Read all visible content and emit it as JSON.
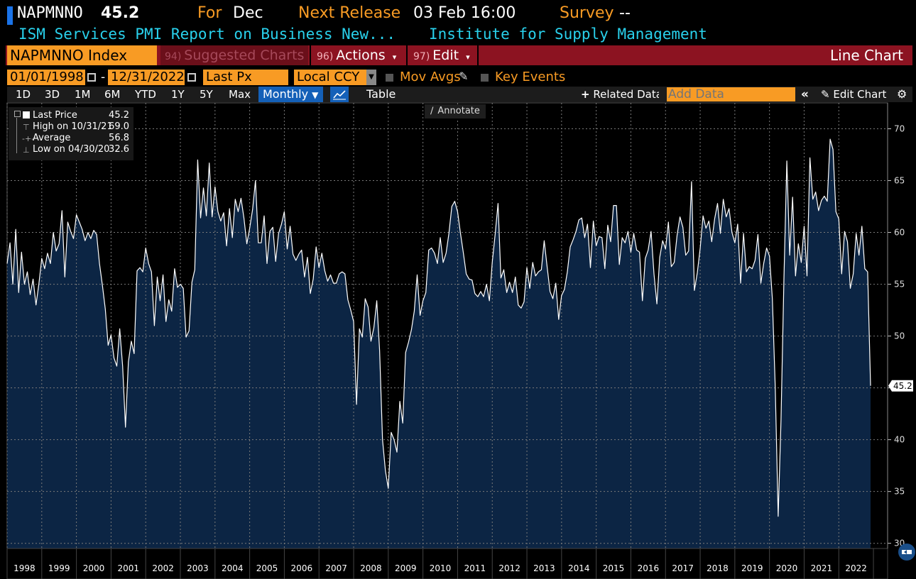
{
  "header": {
    "ticker": "NAPMNNO",
    "last_value": "45.2",
    "for_label": "For",
    "for_value": "Dec",
    "next_release_label": "Next Release",
    "next_release_value": "03 Feb 16:00",
    "survey_label": "Survey",
    "survey_value": "--",
    "description": "ISM Services PMI Report on Business New...",
    "source": "Institute for Supply Management"
  },
  "toolbar": {
    "security": "NAPMNNO Index",
    "suggested_num": "94)",
    "suggested_label": "Suggested Charts",
    "actions_num": "96)",
    "actions_label": "Actions",
    "edit_num": "97)",
    "edit_label": "Edit",
    "chart_type": "Line Chart"
  },
  "range": {
    "start_date": "01/01/1998",
    "dash": "-",
    "end_date": "12/31/2022",
    "field": "Last Px",
    "currency": "Local CCY",
    "mov_avgs": "Mov Avgs",
    "key_events": "Key Events"
  },
  "periods": [
    "1D",
    "3D",
    "1M",
    "6M",
    "YTD",
    "1Y",
    "5Y",
    "Max"
  ],
  "periodicity": "Monthly",
  "table_label": "Table",
  "related_data": "Related Data",
  "add_data_placeholder": "Add Data",
  "edit_chart": "Edit Chart",
  "annotate": "Annotate",
  "legend": [
    {
      "label": "Last Price",
      "value": "45.2"
    },
    {
      "label": "High on 10/31/21",
      "value": "69.0"
    },
    {
      "label": "Average",
      "value": "56.8"
    },
    {
      "label": "Low on 04/30/20",
      "value": "32.6"
    }
  ],
  "colors": {
    "accent_orange": "#f89b24",
    "toolbar_red": "#8c1321",
    "header_cyan": "#29d1ec",
    "area_fill": "#0c2544",
    "line": "#ffffff"
  },
  "chart_data": {
    "type": "area",
    "x_start": "1998-01",
    "x_end": "2022-12",
    "frequency": "monthly",
    "ylim": [
      29.5,
      72.5
    ],
    "yticks": [
      30,
      35,
      40,
      45,
      50,
      55,
      60,
      65,
      70
    ],
    "xtick_labels": [
      "1998",
      "1999",
      "2000",
      "2001",
      "2002",
      "2003",
      "2004",
      "2005",
      "2006",
      "2007",
      "2008",
      "2009",
      "2010",
      "2011",
      "2012",
      "2013",
      "2014",
      "2015",
      "2016",
      "2017",
      "2018",
      "2019",
      "2020",
      "2021",
      "2022"
    ],
    "last_value_label": "45.2",
    "grid": true,
    "series": [
      {
        "values": [
          57.0,
          59.0,
          55.0,
          60.3,
          54.2,
          58.1,
          55.0,
          56.2,
          54.0,
          55.5,
          53.0,
          55.0,
          57.5,
          56.5,
          58.0,
          57.0,
          60.0,
          58.2,
          58.9,
          62.1,
          55.7,
          61.0,
          60.1,
          59.4,
          61.7,
          61.0,
          60.3,
          59.2,
          60.0,
          59.4,
          60.2,
          59.8,
          57.0,
          54.9,
          52.6,
          49.1,
          50.1,
          47.9,
          47.1,
          50.7,
          47.1,
          41.2,
          47.5,
          49.5,
          48.3,
          56.3,
          56.6,
          56.2,
          58.5,
          57.0,
          56.2,
          51.0,
          55.7,
          53.4,
          55.9,
          51.4,
          53.5,
          52.4,
          56.5,
          54.7,
          55.0,
          54.6,
          49.9,
          50.5,
          55.2,
          56.4,
          67.0,
          61.4,
          64.3,
          61.6,
          66.7,
          61.5,
          64.4,
          62.0,
          61.1,
          61.9,
          58.7,
          62.3,
          59.5,
          63.2,
          62.0,
          63.3,
          61.4,
          58.9,
          60.4,
          62.2,
          65.0,
          59.0,
          59.0,
          61.6,
          57.0,
          60.1,
          60.5,
          57.2,
          59.9,
          60.8,
          62.0,
          58.4,
          60.6,
          57.9,
          57.3,
          57.9,
          58.3,
          55.7,
          57.6,
          54.1,
          55.5,
          58.6,
          56.6,
          58.0,
          56.3,
          55.3,
          55.9,
          55.1,
          55.1,
          56.0,
          56.2,
          56.0,
          53.5,
          52.5,
          51.4,
          43.4,
          50.7,
          49.9,
          53.6,
          52.8,
          49.5,
          50.8,
          53.4,
          48.6,
          40.0,
          37.0,
          35.3,
          40.7,
          40.0,
          38.8,
          43.7,
          41.6,
          48.4,
          49.4,
          50.6,
          52.4,
          55.9,
          52.0,
          53.4,
          54.2,
          58.3,
          58.5,
          58.0,
          57.0,
          59.5,
          57.1,
          58.0,
          59.9,
          62.5,
          63.0,
          62.0,
          59.9,
          58.0,
          56.0,
          55.5,
          55.4,
          54.1,
          53.8,
          54.3,
          53.8,
          55.0,
          53.4,
          57.1,
          59.8,
          62.8,
          55.6,
          56.4,
          54.2,
          55.2,
          54.2,
          55.7,
          53.0,
          52.7,
          53.3,
          56.6,
          54.6,
          57.1,
          55.8,
          56.2,
          56.4,
          59.2,
          56.7,
          54.3,
          53.6,
          55.1,
          51.6,
          53.9,
          54.5,
          56.2,
          58.6,
          59.3,
          60.1,
          61.2,
          61.4,
          59.5,
          60.8,
          56.6,
          61.1,
          58.7,
          59.6,
          59.5,
          56.5,
          60.7,
          59.1,
          62.6,
          62.6,
          56.9,
          59.5,
          59.0,
          60.1,
          58.1,
          59.9,
          58.3,
          58.1,
          53.4,
          57.5,
          58.3,
          60.1,
          56.0,
          53.1,
          57.6,
          59.2,
          58.4,
          61.0,
          56.7,
          57.1,
          59.7,
          61.5,
          60.5,
          57.8,
          58.2,
          64.9,
          54.4,
          56.1,
          58.5,
          61.6,
          60.4,
          61.1,
          59.1,
          61.3,
          62.8,
          59.9,
          63.2,
          61.5,
          62.3,
          60.0,
          59.0,
          60.8,
          55.1,
          59.9,
          56.2,
          56.7,
          56.5,
          57.3,
          59.8,
          55.1,
          57.0,
          58.5,
          57.7,
          53.6,
          45.0,
          32.6,
          41.9,
          55.5,
          66.9,
          57.8,
          63.4,
          55.8,
          58.9,
          57.1,
          60.6,
          55.8,
          67.2,
          63.2,
          63.9,
          62.1,
          63.1,
          63.5,
          63.0,
          69.0,
          68.0,
          62.0,
          61.3,
          56.0,
          60.1,
          59.1,
          54.6,
          56.0,
          59.9,
          57.8,
          60.6,
          56.5,
          56.2,
          45.2
        ]
      }
    ]
  }
}
